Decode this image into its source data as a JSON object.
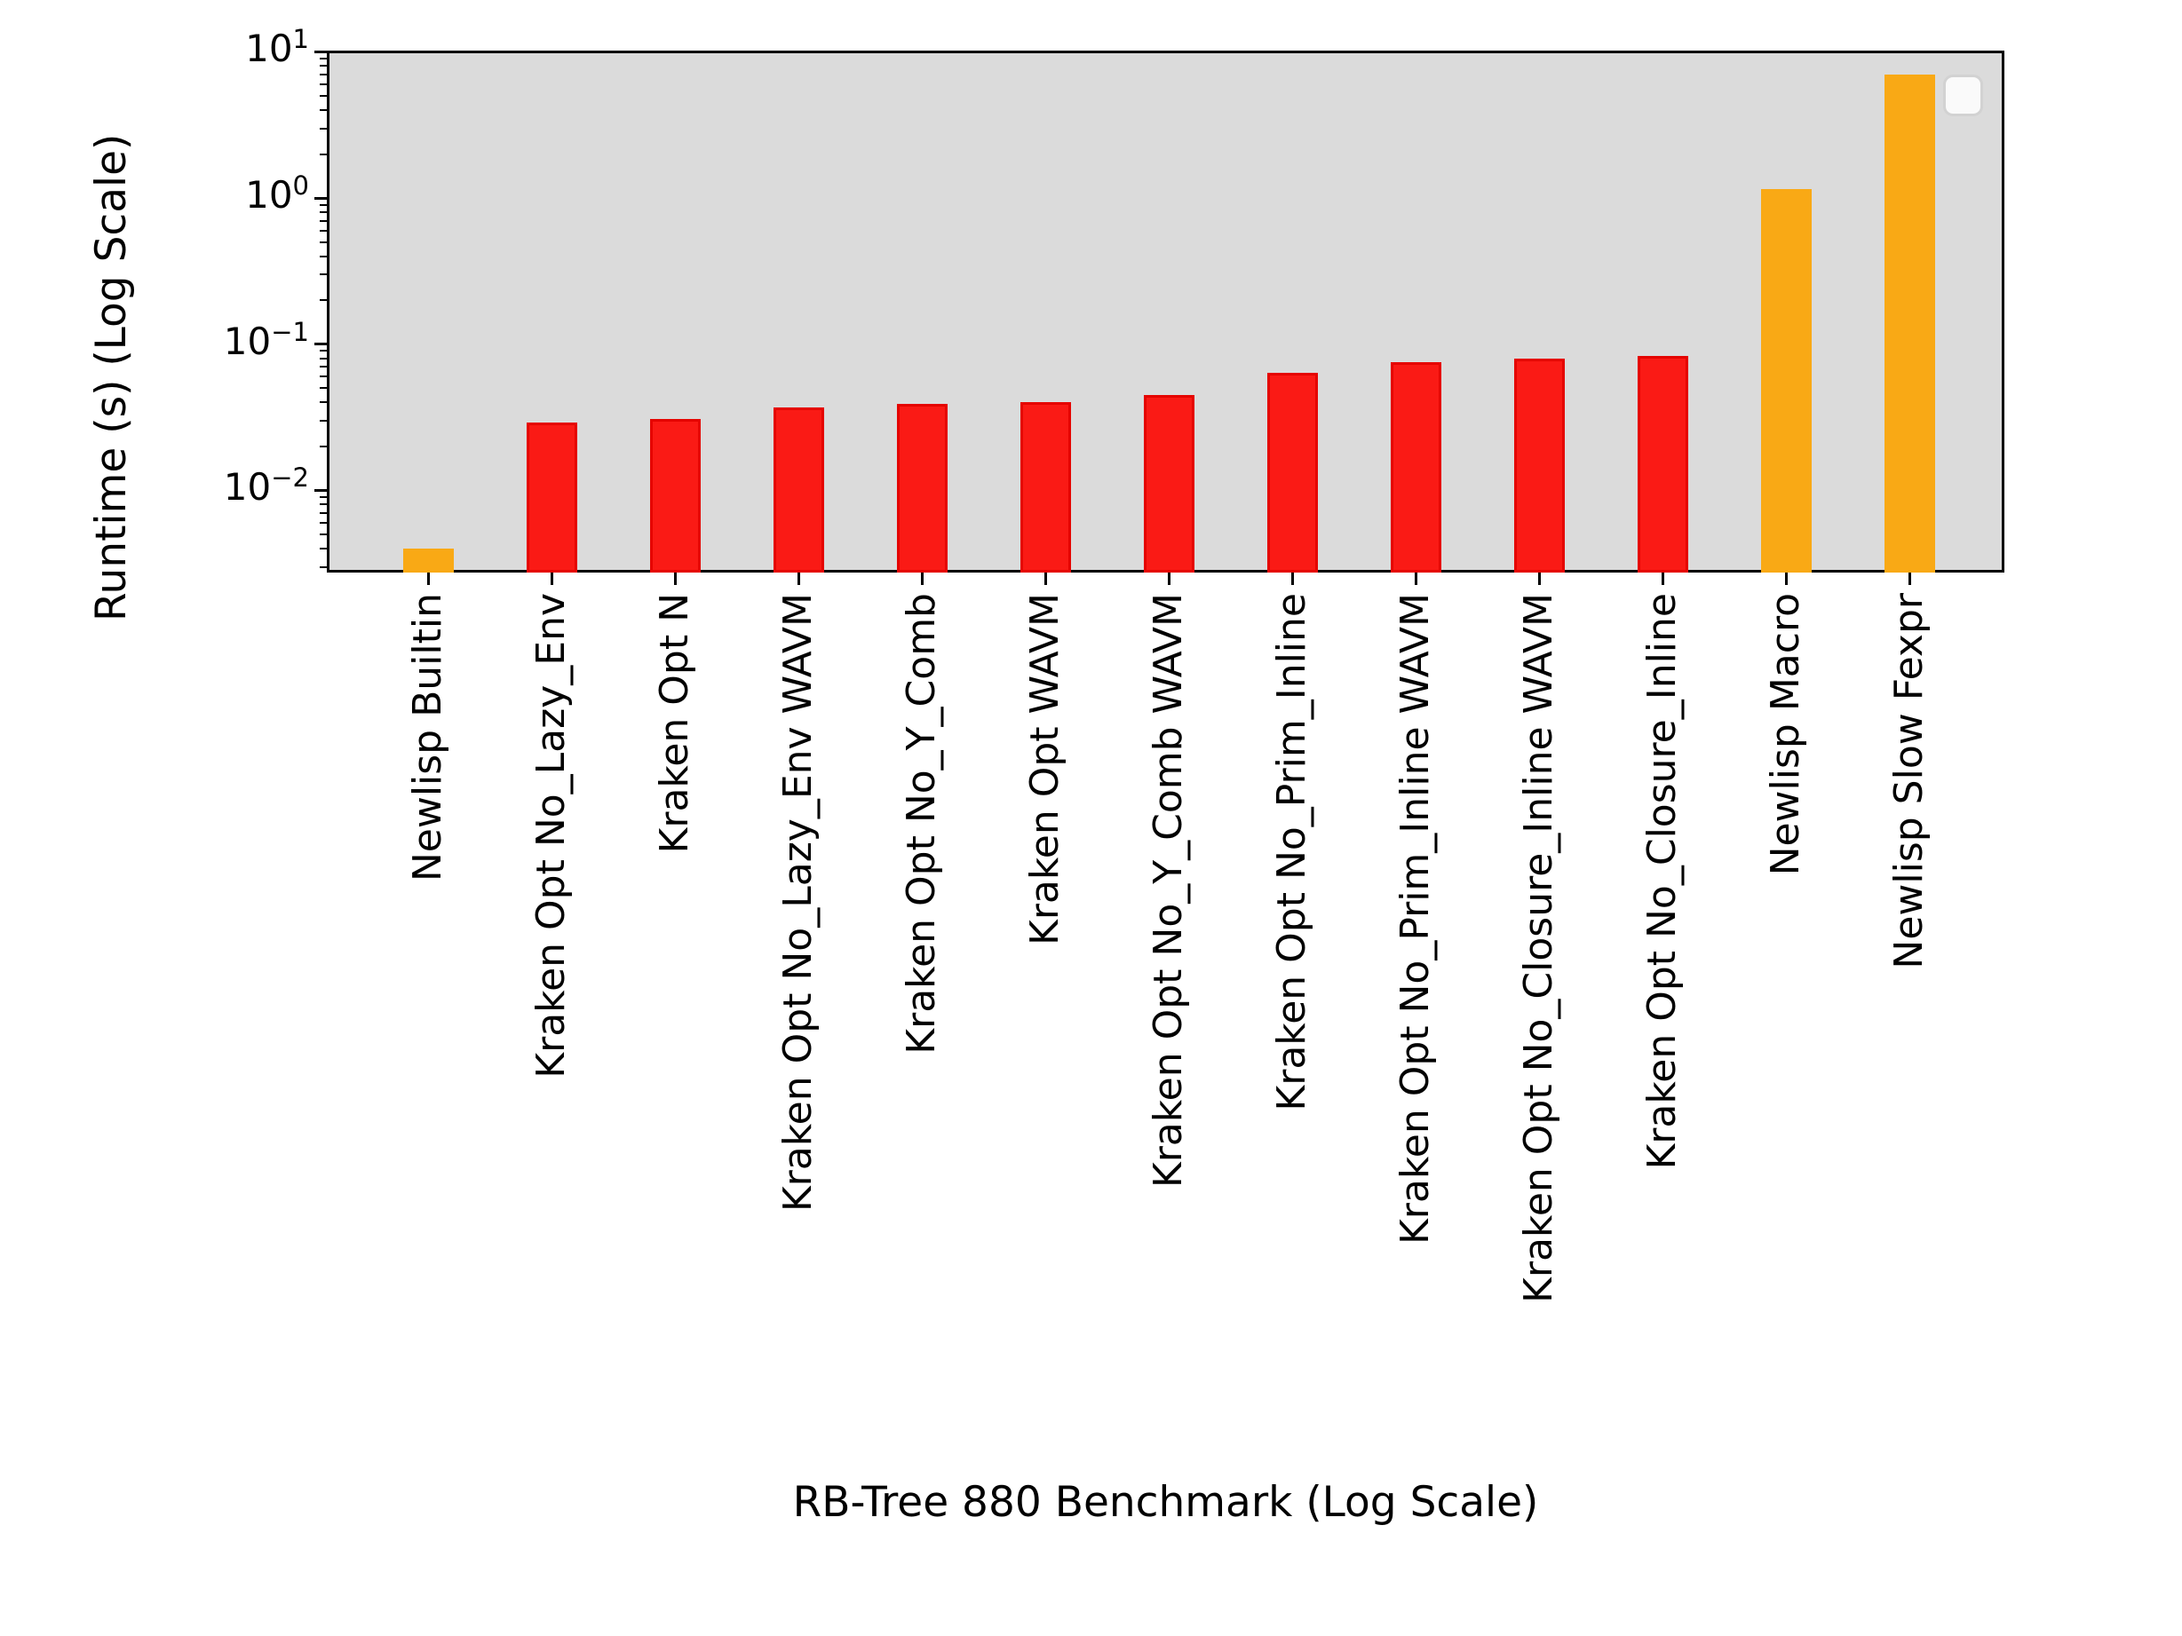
{
  "chart_data": {
    "type": "bar",
    "title": "",
    "xlabel": "RB-Tree 880 Benchmark (Log Scale)",
    "ylabel": "Runtime (s) (Log Scale)",
    "yscale": "log",
    "ylim": [
      0.00274,
      10.2
    ],
    "grid": false,
    "legend_position": "upper right (empty frame)",
    "categories": [
      "Newlisp Builtin",
      "Kraken Opt No_Lazy_Env",
      "Kraken Opt N",
      "Kraken Opt No_Lazy_Env WAVM",
      "Kraken Opt No_Y_Comb",
      "Kraken Opt WAVM",
      "Kraken Opt No_Y_Comb WAVM",
      "Kraken Opt No_Prim_Inline",
      "Kraken Opt No_Prim_Inline WAVM",
      "Kraken Opt No_Closure_Inline WAVM",
      "Kraken Opt No_Closure_Inline",
      "Newlisp Macro",
      "Newlisp Slow Fexpr"
    ],
    "values": [
      0.004,
      0.029,
      0.031,
      0.037,
      0.039,
      0.04,
      0.045,
      0.064,
      0.075,
      0.08,
      0.083,
      1.15,
      7.0
    ],
    "bar_color_keys": [
      "orange",
      "red",
      "red",
      "red",
      "red",
      "red",
      "red",
      "red",
      "red",
      "red",
      "red",
      "orange",
      "orange"
    ],
    "colors": {
      "red_fill": "#fa1a15",
      "red_edge": "#e50400",
      "orange_fill": "#f9a915",
      "orange_edge": "#f9a915",
      "plot_background": "#dbdbdb",
      "figure_background": "#ffffff",
      "axis_line": "#000000",
      "legend_fill": "#fbfbfb",
      "legend_border": "#d2d2d2"
    },
    "y_ticks": [
      {
        "exponent": 1,
        "value": 10
      },
      {
        "exponent": 0,
        "value": 1
      },
      {
        "exponent": -1,
        "value": 0.1
      },
      {
        "exponent": -2,
        "value": 0.01
      }
    ]
  }
}
